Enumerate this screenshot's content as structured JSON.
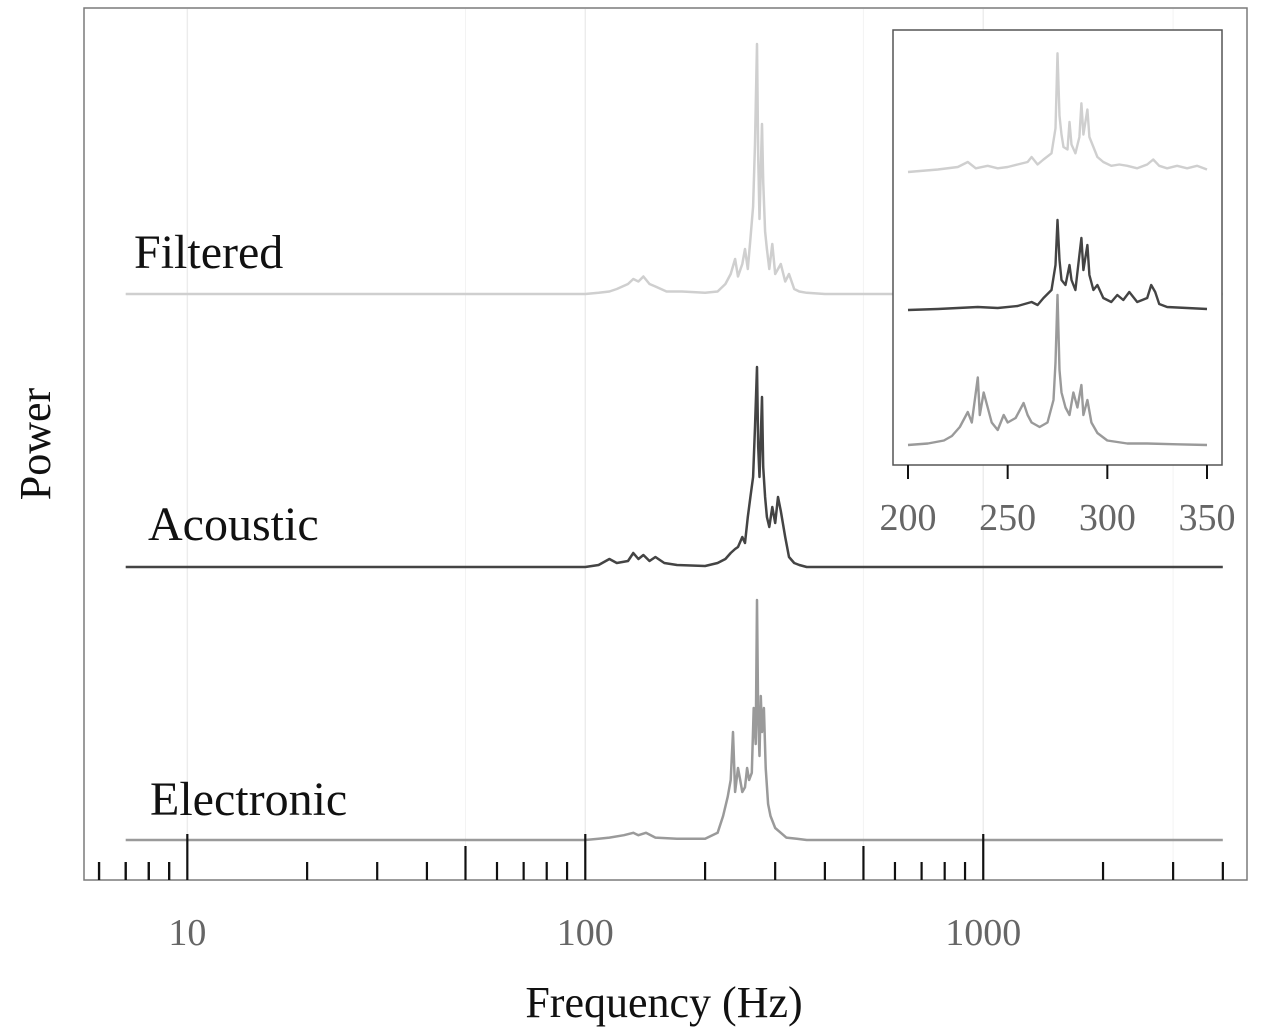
{
  "chart_data": [
    {
      "type": "line",
      "role": "main",
      "title": "",
      "xlabel": "Frequency (Hz)",
      "ylabel": "Power",
      "x_scale": "log",
      "xlim": [
        5.5,
        4600
      ],
      "x_ticks": [
        10,
        100,
        1000
      ],
      "x_tick_labels": [
        "10",
        "100",
        "1000"
      ],
      "grid": true,
      "series": [
        {
          "name": "Filtered",
          "color": "#cfcfcf",
          "points": [
            [
              7,
              0
            ],
            [
              100,
              0
            ],
            [
              108,
              0.005
            ],
            [
              115,
              0.01
            ],
            [
              120,
              0.02
            ],
            [
              128,
              0.04
            ],
            [
              132,
              0.06
            ],
            [
              136,
              0.05
            ],
            [
              140,
              0.07
            ],
            [
              145,
              0.04
            ],
            [
              150,
              0.03
            ],
            [
              160,
              0.01
            ],
            [
              175,
              0.01
            ],
            [
              200,
              0.005
            ],
            [
              215,
              0.01
            ],
            [
              225,
              0.04
            ],
            [
              232,
              0.08
            ],
            [
              238,
              0.14
            ],
            [
              242,
              0.07
            ],
            [
              248,
              0.12
            ],
            [
              252,
              0.18
            ],
            [
              256,
              0.1
            ],
            [
              260,
              0.22
            ],
            [
              264,
              0.35
            ],
            [
              267,
              0.6
            ],
            [
              270,
              1.0
            ],
            [
              272,
              0.55
            ],
            [
              274,
              0.3
            ],
            [
              276,
              0.5
            ],
            [
              278,
              0.68
            ],
            [
              280,
              0.45
            ],
            [
              283,
              0.25
            ],
            [
              286,
              0.18
            ],
            [
              290,
              0.1
            ],
            [
              295,
              0.2
            ],
            [
              300,
              0.08
            ],
            [
              310,
              0.12
            ],
            [
              318,
              0.05
            ],
            [
              325,
              0.08
            ],
            [
              335,
              0.02
            ],
            [
              345,
              0.01
            ],
            [
              360,
              0.005
            ],
            [
              400,
              0
            ],
            [
              4000,
              0
            ]
          ]
        },
        {
          "name": "Acoustic",
          "color": "#444444",
          "points": [
            [
              7,
              0
            ],
            [
              100,
              0
            ],
            [
              108,
              0.01
            ],
            [
              115,
              0.04
            ],
            [
              120,
              0.02
            ],
            [
              128,
              0.03
            ],
            [
              132,
              0.07
            ],
            [
              136,
              0.04
            ],
            [
              140,
              0.06
            ],
            [
              145,
              0.03
            ],
            [
              150,
              0.05
            ],
            [
              158,
              0.02
            ],
            [
              170,
              0.01
            ],
            [
              200,
              0.005
            ],
            [
              215,
              0.02
            ],
            [
              225,
              0.04
            ],
            [
              232,
              0.07
            ],
            [
              238,
              0.09
            ],
            [
              242,
              0.1
            ],
            [
              248,
              0.15
            ],
            [
              252,
              0.12
            ],
            [
              256,
              0.25
            ],
            [
              260,
              0.35
            ],
            [
              264,
              0.45
            ],
            [
              267,
              0.7
            ],
            [
              270,
              1.0
            ],
            [
              272,
              0.6
            ],
            [
              274,
              0.45
            ],
            [
              276,
              0.65
            ],
            [
              278,
              0.85
            ],
            [
              280,
              0.5
            ],
            [
              283,
              0.35
            ],
            [
              286,
              0.25
            ],
            [
              290,
              0.2
            ],
            [
              295,
              0.3
            ],
            [
              300,
              0.22
            ],
            [
              305,
              0.35
            ],
            [
              310,
              0.28
            ],
            [
              318,
              0.15
            ],
            [
              325,
              0.05
            ],
            [
              335,
              0.02
            ],
            [
              345,
              0.01
            ],
            [
              360,
              0
            ],
            [
              4000,
              0
            ]
          ]
        },
        {
          "name": "Electronic",
          "color": "#9a9a9a",
          "points": [
            [
              7,
              0
            ],
            [
              100,
              0
            ],
            [
              108,
              0.005
            ],
            [
              115,
              0.01
            ],
            [
              125,
              0.02
            ],
            [
              132,
              0.03
            ],
            [
              136,
              0.02
            ],
            [
              142,
              0.03
            ],
            [
              150,
              0.01
            ],
            [
              170,
              0.005
            ],
            [
              200,
              0.005
            ],
            [
              215,
              0.03
            ],
            [
              222,
              0.1
            ],
            [
              228,
              0.18
            ],
            [
              232,
              0.25
            ],
            [
              235,
              0.45
            ],
            [
              238,
              0.2
            ],
            [
              242,
              0.3
            ],
            [
              245,
              0.25
            ],
            [
              248,
              0.2
            ],
            [
              252,
              0.22
            ],
            [
              255,
              0.3
            ],
            [
              258,
              0.25
            ],
            [
              262,
              0.28
            ],
            [
              265,
              0.55
            ],
            [
              268,
              0.4
            ],
            [
              270,
              1.0
            ],
            [
              272,
              0.5
            ],
            [
              274,
              0.35
            ],
            [
              276,
              0.6
            ],
            [
              278,
              0.45
            ],
            [
              281,
              0.55
            ],
            [
              284,
              0.3
            ],
            [
              288,
              0.15
            ],
            [
              292,
              0.1
            ],
            [
              300,
              0.05
            ],
            [
              310,
              0.03
            ],
            [
              320,
              0.01
            ],
            [
              340,
              0.005
            ],
            [
              360,
              0
            ],
            [
              4000,
              0
            ]
          ]
        }
      ]
    },
    {
      "type": "line",
      "role": "inset",
      "title": "",
      "xlabel": "",
      "ylabel": "",
      "xlim": [
        200,
        350
      ],
      "x_ticks": [
        200,
        250,
        300,
        350
      ],
      "x_tick_labels": [
        "200",
        "250",
        "300",
        "350"
      ],
      "series": [
        {
          "name": "Filtered",
          "color": "#cfcfcf",
          "points": [
            [
              200,
              0
            ],
            [
              215,
              0.02
            ],
            [
              225,
              0.04
            ],
            [
              230,
              0.08
            ],
            [
              234,
              0.03
            ],
            [
              240,
              0.05
            ],
            [
              245,
              0.03
            ],
            [
              250,
              0.04
            ],
            [
              255,
              0.06
            ],
            [
              260,
              0.08
            ],
            [
              262,
              0.12
            ],
            [
              265,
              0.06
            ],
            [
              268,
              0.1
            ],
            [
              272,
              0.15
            ],
            [
              274,
              0.35
            ],
            [
              275,
              0.95
            ],
            [
              276,
              0.45
            ],
            [
              277,
              0.3
            ],
            [
              278,
              0.2
            ],
            [
              280,
              0.18
            ],
            [
              281,
              0.4
            ],
            [
              282,
              0.22
            ],
            [
              284,
              0.15
            ],
            [
              286,
              0.28
            ],
            [
              287,
              0.55
            ],
            [
              288,
              0.3
            ],
            [
              290,
              0.5
            ],
            [
              291,
              0.28
            ],
            [
              293,
              0.2
            ],
            [
              295,
              0.12
            ],
            [
              298,
              0.08
            ],
            [
              302,
              0.05
            ],
            [
              306,
              0.06
            ],
            [
              310,
              0.05
            ],
            [
              315,
              0.03
            ],
            [
              320,
              0.06
            ],
            [
              323,
              0.1
            ],
            [
              326,
              0.05
            ],
            [
              330,
              0.03
            ],
            [
              335,
              0.05
            ],
            [
              340,
              0.03
            ],
            [
              345,
              0.05
            ],
            [
              350,
              0.02
            ]
          ]
        },
        {
          "name": "Acoustic",
          "color": "#444444",
          "points": [
            [
              200,
              0
            ],
            [
              215,
              0.01
            ],
            [
              225,
              0.02
            ],
            [
              235,
              0.03
            ],
            [
              245,
              0.02
            ],
            [
              255,
              0.04
            ],
            [
              262,
              0.08
            ],
            [
              265,
              0.05
            ],
            [
              268,
              0.12
            ],
            [
              272,
              0.2
            ],
            [
              274,
              0.45
            ],
            [
              275,
              0.9
            ],
            [
              276,
              0.5
            ],
            [
              277,
              0.3
            ],
            [
              279,
              0.25
            ],
            [
              281,
              0.45
            ],
            [
              282,
              0.3
            ],
            [
              284,
              0.2
            ],
            [
              286,
              0.55
            ],
            [
              287,
              0.72
            ],
            [
              288,
              0.4
            ],
            [
              290,
              0.65
            ],
            [
              291,
              0.35
            ],
            [
              293,
              0.2
            ],
            [
              295,
              0.25
            ],
            [
              298,
              0.12
            ],
            [
              302,
              0.08
            ],
            [
              305,
              0.15
            ],
            [
              308,
              0.1
            ],
            [
              311,
              0.18
            ],
            [
              315,
              0.08
            ],
            [
              320,
              0.12
            ],
            [
              322,
              0.25
            ],
            [
              324,
              0.18
            ],
            [
              326,
              0.06
            ],
            [
              330,
              0.03
            ],
            [
              340,
              0.02
            ],
            [
              350,
              0.01
            ]
          ]
        },
        {
          "name": "Electronic",
          "color": "#9a9a9a",
          "points": [
            [
              200,
              0
            ],
            [
              210,
              0.01
            ],
            [
              218,
              0.03
            ],
            [
              222,
              0.06
            ],
            [
              226,
              0.12
            ],
            [
              230,
              0.22
            ],
            [
              232,
              0.15
            ],
            [
              235,
              0.45
            ],
            [
              236,
              0.2
            ],
            [
              238,
              0.35
            ],
            [
              240,
              0.25
            ],
            [
              242,
              0.15
            ],
            [
              245,
              0.1
            ],
            [
              248,
              0.2
            ],
            [
              250,
              0.15
            ],
            [
              254,
              0.18
            ],
            [
              258,
              0.28
            ],
            [
              260,
              0.2
            ],
            [
              262,
              0.15
            ],
            [
              266,
              0.12
            ],
            [
              270,
              0.15
            ],
            [
              273,
              0.3
            ],
            [
              274,
              0.55
            ],
            [
              275,
              1.0
            ],
            [
              276,
              0.5
            ],
            [
              277,
              0.35
            ],
            [
              279,
              0.25
            ],
            [
              281,
              0.2
            ],
            [
              283,
              0.35
            ],
            [
              285,
              0.25
            ],
            [
              287,
              0.4
            ],
            [
              288,
              0.2
            ],
            [
              290,
              0.3
            ],
            [
              292,
              0.15
            ],
            [
              295,
              0.08
            ],
            [
              300,
              0.03
            ],
            [
              310,
              0.01
            ],
            [
              320,
              0.01
            ],
            [
              335,
              0.005
            ],
            [
              350,
              0
            ]
          ]
        }
      ]
    }
  ]
}
